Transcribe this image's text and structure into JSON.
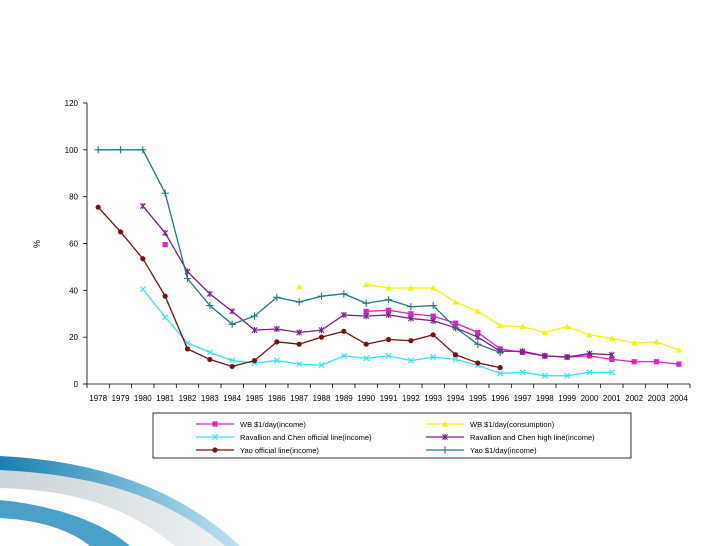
{
  "chart_data": {
    "type": "line",
    "title": "",
    "xlabel": "",
    "ylabel": "%",
    "ylim": [
      0,
      120
    ],
    "yticks": [
      0,
      20,
      40,
      60,
      80,
      100,
      120
    ],
    "grid": false,
    "legend_position": "bottom",
    "x": [
      1978,
      1979,
      1980,
      1981,
      1982,
      1983,
      1984,
      1985,
      1986,
      1987,
      1988,
      1989,
      1990,
      1991,
      1992,
      1993,
      1994,
      1995,
      1996,
      1997,
      1998,
      1999,
      2000,
      2001,
      2002,
      2003,
      2004
    ],
    "series": [
      {
        "name": "WB $1/day(income)",
        "color": "#e020c8",
        "marker": "square",
        "linestyle": "line",
        "values": [
          null,
          null,
          null,
          59.5,
          null,
          null,
          null,
          null,
          null,
          null,
          null,
          null,
          31,
          31.5,
          30,
          29,
          26,
          22,
          15,
          13.5,
          12,
          11.5,
          12,
          10.5,
          9.5,
          9.5,
          8.5
        ]
      },
      {
        "name": "WB $1/day(consumption)",
        "color": "#f5f500",
        "marker": "triangle",
        "linestyle": "line",
        "values": [
          null,
          null,
          null,
          null,
          null,
          null,
          null,
          null,
          null,
          41.5,
          null,
          null,
          42.5,
          41,
          41,
          41,
          35,
          31,
          25,
          24.5,
          22,
          24.5,
          21,
          19.5,
          17.5,
          18,
          14.5
        ]
      },
      {
        "name": "Ravallion and Chen official line(income)",
        "color": "#30e8f0",
        "marker": "x",
        "linestyle": "line",
        "values": [
          null,
          null,
          40.5,
          28.5,
          17.5,
          13.5,
          10,
          9,
          10,
          8.5,
          8,
          12,
          11,
          12,
          10,
          11.5,
          10.5,
          8,
          4.5,
          5,
          3.5,
          3.5,
          5,
          5,
          null,
          null,
          null
        ]
      },
      {
        "name": "Ravallion and Chen high line(income)",
        "color": "#7a1e8c",
        "marker": "star",
        "linestyle": "line",
        "values": [
          null,
          null,
          76,
          64.5,
          48,
          38.5,
          31,
          23,
          23.5,
          22,
          23,
          29.5,
          29,
          29.5,
          28,
          27,
          24,
          20,
          14,
          14,
          12,
          11.5,
          13,
          12.5,
          null,
          null,
          null
        ]
      },
      {
        "name": "Yao official line(income)",
        "color": "#7a1010",
        "marker": "circle",
        "linestyle": "line",
        "values": [
          75.5,
          65,
          53.5,
          37.5,
          15,
          10.5,
          7.5,
          10,
          18,
          17,
          20,
          22.5,
          17,
          19,
          18.5,
          21,
          12.5,
          9,
          7,
          null,
          null,
          null,
          null,
          null,
          null,
          null,
          null
        ]
      },
      {
        "name": "Yao $1/day(income)",
        "color": "#1e7a80",
        "marker": "plus",
        "linestyle": "line",
        "values": [
          100,
          100,
          100,
          81.5,
          45,
          33.5,
          25.5,
          29,
          37,
          35,
          37.5,
          38.5,
          34.5,
          36,
          33,
          33.5,
          24,
          17,
          13.5,
          null,
          null,
          null,
          null,
          null,
          null,
          null,
          null
        ]
      }
    ]
  }
}
